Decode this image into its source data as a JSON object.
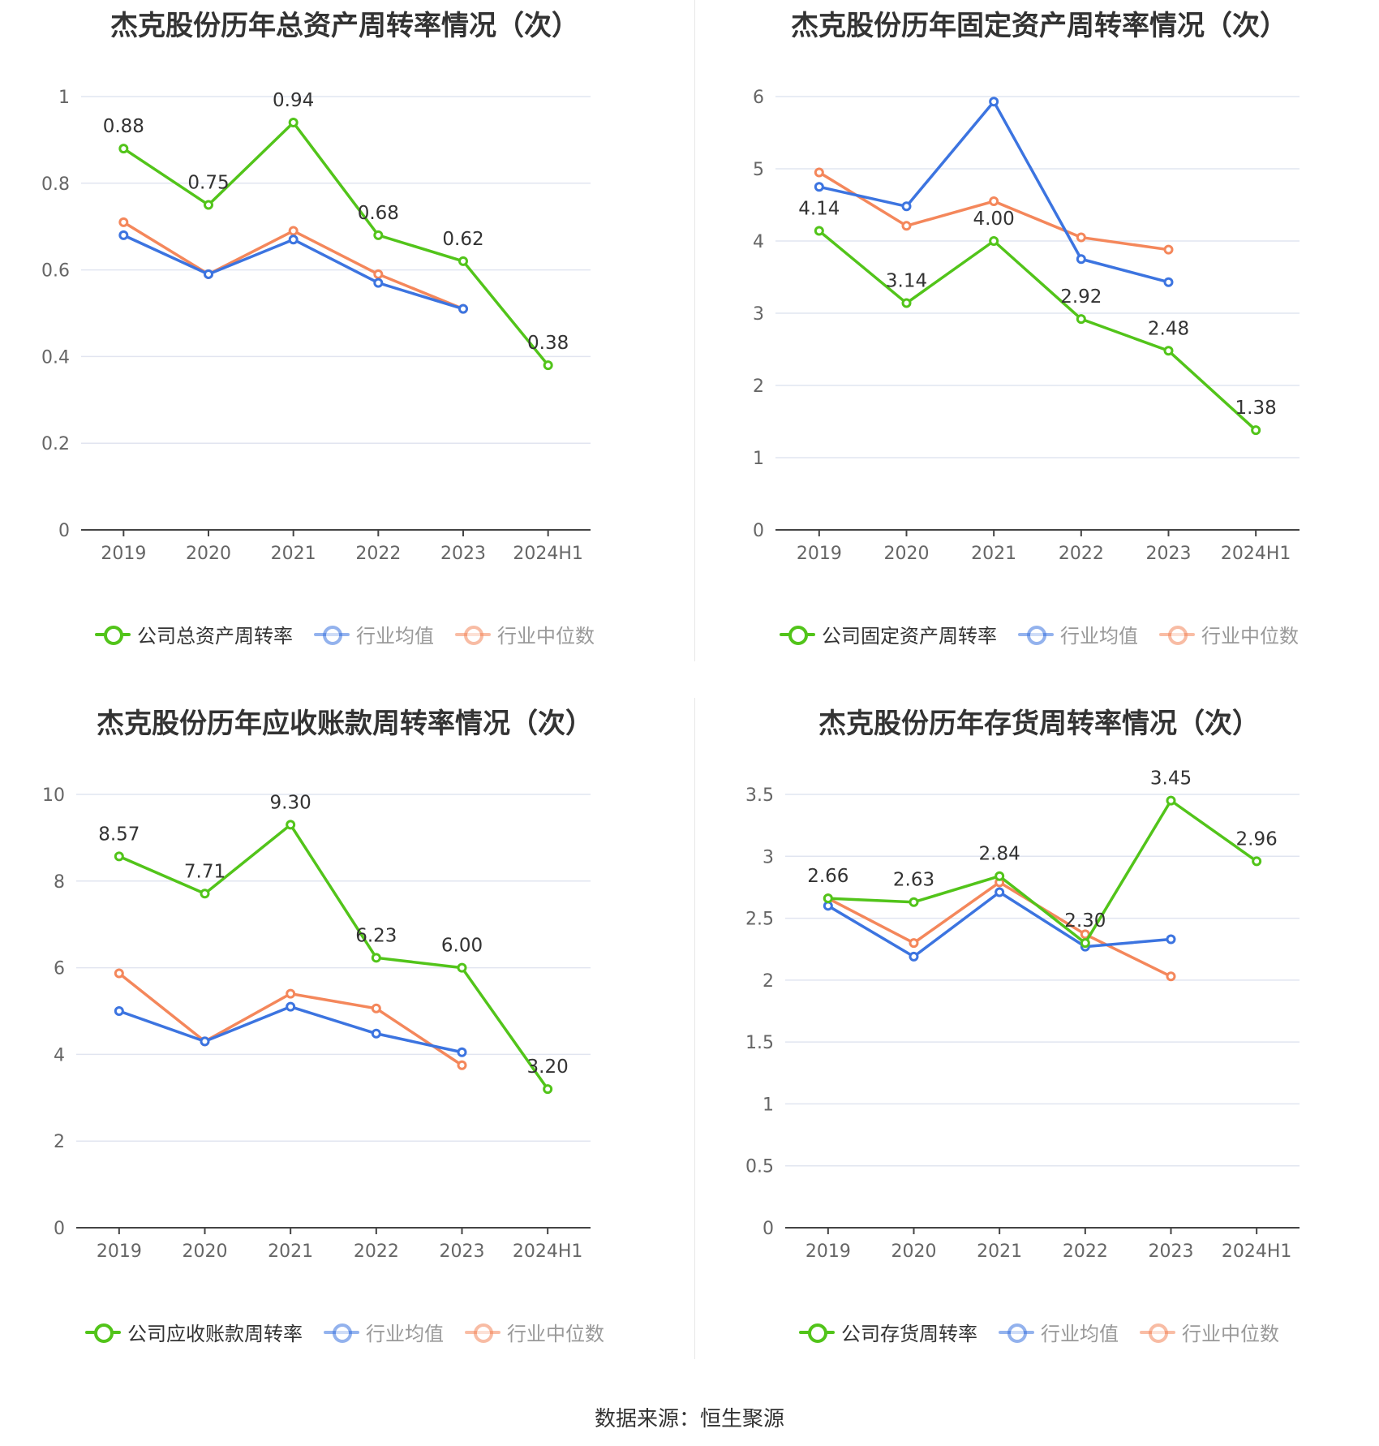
{
  "colors": {
    "company": "#52c41a",
    "industry_avg": "#3c74e0",
    "industry_median": "#f4875b",
    "grid": "#e1e5f0",
    "axis": "#666666"
  },
  "source_text": "数据来源：恒生聚源",
  "chart_data": [
    {
      "type": "line",
      "title": "杰克股份历年总资产周转率情况（次）",
      "categories": [
        "2019",
        "2020",
        "2021",
        "2022",
        "2023",
        "2024H1"
      ],
      "ylim": [
        0,
        1
      ],
      "yticks": [
        0,
        0.2,
        0.4,
        0.6,
        0.8,
        1
      ],
      "ytick_labels": [
        "0",
        "0.2",
        "0.4",
        "0.6",
        "0.8",
        "1"
      ],
      "legend": "bottom",
      "series": [
        {
          "name": "公司总资产周转率",
          "values": [
            0.88,
            0.75,
            0.94,
            0.68,
            0.62,
            0.38
          ],
          "labels": [
            "0.88",
            "0.75",
            "0.94",
            "0.68",
            "0.62",
            "0.38"
          ]
        },
        {
          "name": "行业均值",
          "values": [
            0.68,
            0.59,
            0.67,
            0.57,
            0.51,
            null
          ]
        },
        {
          "name": "行业中位数",
          "values": [
            0.71,
            0.59,
            0.69,
            0.59,
            0.51,
            null
          ]
        }
      ]
    },
    {
      "type": "line",
      "title": "杰克股份历年固定资产周转率情况（次）",
      "categories": [
        "2019",
        "2020",
        "2021",
        "2022",
        "2023",
        "2024H1"
      ],
      "ylim": [
        0,
        6
      ],
      "yticks": [
        0,
        1,
        2,
        3,
        4,
        5,
        6
      ],
      "ytick_labels": [
        "0",
        "1",
        "2",
        "3",
        "4",
        "5",
        "6"
      ],
      "legend": "bottom",
      "series": [
        {
          "name": "公司固定资产周转率",
          "values": [
            4.14,
            3.14,
            4.0,
            2.92,
            2.48,
            1.38
          ],
          "labels": [
            "4.14",
            "3.14",
            "4.00",
            "2.92",
            "2.48",
            "1.38"
          ]
        },
        {
          "name": "行业均值",
          "values": [
            4.75,
            4.48,
            5.93,
            3.75,
            3.43,
            null
          ]
        },
        {
          "name": "行业中位数",
          "values": [
            4.95,
            4.21,
            4.55,
            4.05,
            3.88,
            null
          ]
        }
      ]
    },
    {
      "type": "line",
      "title": "杰克股份历年应收账款周转率情况（次）",
      "categories": [
        "2019",
        "2020",
        "2021",
        "2022",
        "2023",
        "2024H1"
      ],
      "ylim": [
        0,
        10
      ],
      "yticks": [
        0,
        2,
        4,
        6,
        8,
        10
      ],
      "ytick_labels": [
        "0",
        "2",
        "4",
        "6",
        "8",
        "10"
      ],
      "legend": "bottom",
      "series": [
        {
          "name": "公司应收账款周转率",
          "values": [
            8.57,
            7.71,
            9.3,
            6.23,
            6.0,
            3.2
          ],
          "labels": [
            "8.57",
            "7.71",
            "9.30",
            "6.23",
            "6.00",
            "3.20"
          ]
        },
        {
          "name": "行业均值",
          "values": [
            5.0,
            4.3,
            5.1,
            4.48,
            4.05,
            null
          ]
        },
        {
          "name": "行业中位数",
          "values": [
            5.87,
            4.3,
            5.4,
            5.06,
            3.75,
            null
          ]
        }
      ]
    },
    {
      "type": "line",
      "title": "杰克股份历年存货周转率情况（次）",
      "categories": [
        "2019",
        "2020",
        "2021",
        "2022",
        "2023",
        "2024H1"
      ],
      "ylim": [
        0,
        3.5
      ],
      "yticks": [
        0,
        0.5,
        1,
        1.5,
        2,
        2.5,
        3,
        3.5
      ],
      "ytick_labels": [
        "0",
        "0.5",
        "1",
        "1.5",
        "2",
        "2.5",
        "3",
        "3.5"
      ],
      "legend": "bottom",
      "series": [
        {
          "name": "公司存货周转率",
          "values": [
            2.66,
            2.63,
            2.84,
            2.3,
            3.45,
            2.96
          ],
          "labels": [
            "2.66",
            "2.63",
            "2.84",
            "2.30",
            "3.45",
            "2.96"
          ]
        },
        {
          "name": "行业均值",
          "values": [
            2.6,
            2.19,
            2.71,
            2.27,
            2.33,
            null
          ]
        },
        {
          "name": "行业中位数",
          "values": [
            2.66,
            2.3,
            2.79,
            2.37,
            2.03,
            null
          ]
        }
      ]
    }
  ]
}
